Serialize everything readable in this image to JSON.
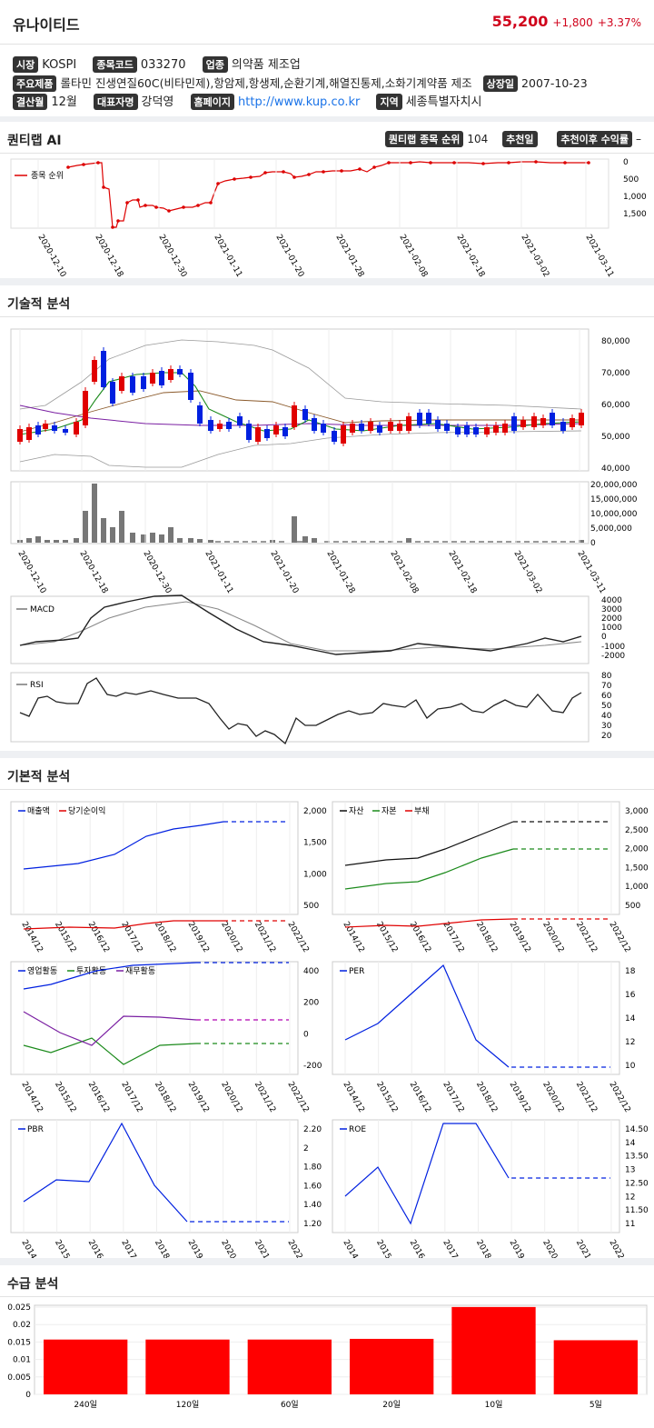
{
  "header": {
    "name": "유나이티드",
    "price": "55,200",
    "change": "+1,800",
    "change_pct": "+3.37%"
  },
  "info": {
    "market_label": "시장",
    "market": "KOSPI",
    "code_label": "종목코드",
    "code": "033270",
    "industry_label": "업종",
    "industry": "의약품 제조업",
    "products_label": "주요제품",
    "products": "롤타민 진생연질60C(비타민제),항암제,항생제,순환기계,해열진통제,소화기계약품 제조",
    "listed_label": "상장일",
    "listed": "2007-10-23",
    "fiscal_label": "결산월",
    "fiscal": "12월",
    "ceo_label": "대표자명",
    "ceo": "강덕영",
    "homepage_label": "홈페이지",
    "homepage": "http://www.kup.co.kr",
    "region_label": "지역",
    "region": "세종특별자치시"
  },
  "quant": {
    "title": "퀀티랩 AI",
    "rank_label": "퀀티랩 종목 순위",
    "rank": "104",
    "rec_date_label": "추천일",
    "rec_return_label": "추천이후 수익률",
    "rec_return": "–",
    "legend": "종목 순위",
    "yticks": [
      "0",
      "500",
      "1,000",
      "1,500"
    ],
    "dates": [
      "2020-12-10",
      "2020-12-18",
      "2020-12-30",
      "2021-01-11",
      "2021-01-20",
      "2021-01-28",
      "2021-02-08",
      "2021-02-18",
      "2021-03-02",
      "2021-03-11"
    ]
  },
  "tech": {
    "title": "기술적 분석",
    "price_ticks": [
      "80,000",
      "70,000",
      "60,000",
      "50,000",
      "40,000"
    ],
    "vol_ticks": [
      "20,000,000",
      "15,000,000",
      "10,000,000",
      "5,000,000",
      "0"
    ],
    "macd_label": "MACD",
    "macd_ticks": [
      "4000",
      "3000",
      "2000",
      "1000",
      "0",
      "-1000",
      "-2000"
    ],
    "rsi_label": "RSI",
    "rsi_ticks": [
      "80",
      "70",
      "60",
      "50",
      "40",
      "30",
      "20"
    ]
  },
  "fund": {
    "title": "기본적 분석",
    "years": [
      "2014/12",
      "2015/12",
      "2016/12",
      "2017/12",
      "2018/12",
      "2019/12",
      "2020/12",
      "2021/12",
      "2022/12"
    ],
    "c1": {
      "legend": [
        "매출액",
        "당기순이익"
      ],
      "ticks": [
        "2,000",
        "1,500",
        "1,000",
        "500"
      ]
    },
    "c2": {
      "legend": [
        "자산",
        "자본",
        "부채"
      ],
      "ticks": [
        "3,000",
        "2,500",
        "2,000",
        "1,500",
        "1,000",
        "500"
      ]
    },
    "c3": {
      "legend": [
        "영업활동",
        "투자활동",
        "재무활동"
      ],
      "ticks": [
        "400",
        "200",
        "0",
        "-200"
      ]
    },
    "c4": {
      "legend": [
        "PER"
      ],
      "ticks": [
        "18",
        "16",
        "14",
        "12",
        "10"
      ]
    },
    "c5": {
      "legend": [
        "PBR"
      ],
      "ticks": [
        "2.20",
        "2",
        "1.80",
        "1.60",
        "1.40",
        "1.20"
      ]
    },
    "c6": {
      "legend": [
        "ROE"
      ],
      "ticks": [
        "14.50",
        "14",
        "13.50",
        "13",
        "12.50",
        "12",
        "11.50",
        "11"
      ]
    }
  },
  "supply": {
    "title": "수급 분석",
    "yticks": [
      "0.025",
      "0.02",
      "0.015",
      "0.01",
      "0.005",
      "0"
    ]
  },
  "chart_data": [
    {
      "type": "bar",
      "title": "수급 분석",
      "categories": [
        "240일",
        "120일",
        "60일",
        "20일",
        "10일",
        "5일"
      ],
      "values": [
        0.016,
        0.016,
        0.016,
        0.0162,
        0.0255,
        0.0158
      ],
      "ylim": [
        0,
        0.026
      ]
    },
    {
      "type": "line",
      "title": "PER",
      "x": [
        "2014/12",
        "2015/12",
        "2016/12",
        "2017/12",
        "2018/12",
        "2019/12"
      ],
      "series": [
        {
          "name": "PER",
          "values": [
            11.7,
            12.8,
            15.3,
            17.7,
            11.7,
            9.7
          ]
        }
      ],
      "ylim": [
        9.5,
        18
      ]
    },
    {
      "type": "line",
      "title": "PBR",
      "x": [
        "2014/12",
        "2015/12",
        "2016/12",
        "2017/12",
        "2018/12",
        "2019/12"
      ],
      "series": [
        {
          "name": "PBR",
          "values": [
            1.3,
            1.56,
            1.55,
            2.22,
            1.48,
            1.08
          ]
        }
      ],
      "ylim": [
        1.05,
        2.25
      ]
    },
    {
      "type": "line",
      "title": "ROE",
      "x": [
        "2014/12",
        "2015/12",
        "2016/12",
        "2017/12",
        "2018/12",
        "2019/12"
      ],
      "series": [
        {
          "name": "ROE",
          "values": [
            12.4,
            13.2,
            11.1,
            14.55,
            14.57,
            12.8
          ]
        }
      ],
      "ylim": [
        11,
        14.7
      ]
    }
  ]
}
